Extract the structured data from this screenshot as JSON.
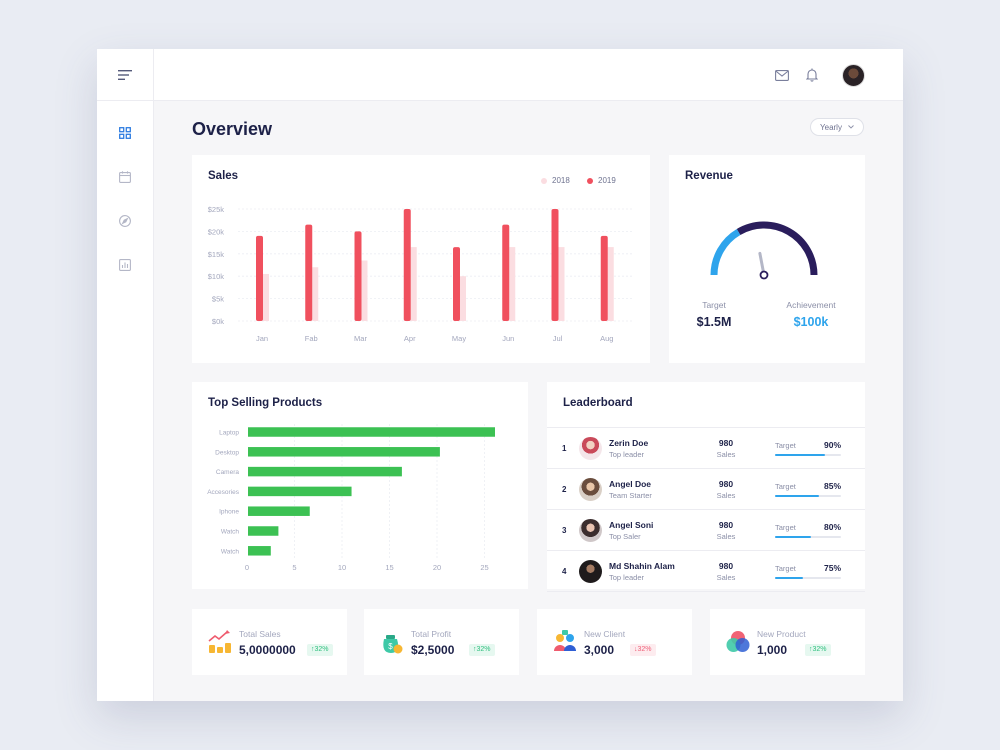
{
  "page": {
    "title": "Overview",
    "period_label": "Yearly"
  },
  "sidebar": {
    "menu_icon": "menu-icon",
    "items": [
      {
        "name": "dashboard",
        "icon": "grid-icon",
        "active": true
      },
      {
        "name": "calendar",
        "icon": "calendar-icon",
        "active": false
      },
      {
        "name": "explore",
        "icon": "compass-icon",
        "active": false
      },
      {
        "name": "reports",
        "icon": "bar-chart-icon",
        "active": false
      }
    ]
  },
  "topbar": {
    "icons": [
      "mail-icon",
      "bell-icon",
      "avatar"
    ]
  },
  "sales": {
    "title": "Sales",
    "legend": [
      {
        "label": "2018",
        "color": "#fbdde1"
      },
      {
        "label": "2019",
        "color": "#f0505e"
      }
    ],
    "chart_data": {
      "type": "bar",
      "categories": [
        "Jan",
        "Fab",
        "Mar",
        "Apr",
        "May",
        "Jun",
        "Jul",
        "Aug"
      ],
      "series": [
        {
          "name": "2018",
          "values": [
            10.5,
            12,
            13.5,
            16.5,
            10,
            16.5,
            16.5,
            16.5
          ]
        },
        {
          "name": "2019",
          "values": [
            19,
            21.5,
            20,
            25,
            16.5,
            21.5,
            25,
            19
          ]
        }
      ],
      "y_ticks": [
        "$0k",
        "$5k",
        "$10k",
        "$15k",
        "$20k",
        "$25k"
      ],
      "ylim": [
        0,
        25
      ],
      "grid": true
    }
  },
  "revenue": {
    "title": "Revenue",
    "gauge": {
      "achieved_fraction": 0.33,
      "needle_fraction": 0.44,
      "achieved_color": "#2ea4ec",
      "remaining_color": "#2a1d5c"
    },
    "target_label": "Target",
    "target_value": "$1.5M",
    "achievement_label": "Achievement",
    "achievement_value": "$100k"
  },
  "products": {
    "title": "Top Selling Products",
    "chart_data": {
      "type": "bar",
      "orientation": "horizontal",
      "categories": [
        "Laptop",
        "Desktop",
        "Camera",
        "Accesories",
        "Iphone",
        "Watch",
        "Watch"
      ],
      "values": [
        26,
        20.2,
        16.2,
        10.9,
        6.5,
        3.2,
        2.4
      ],
      "x_ticks": [
        "0",
        "5",
        "10",
        "15",
        "20",
        "25"
      ],
      "xlim": [
        0,
        25
      ],
      "color": "#3cc153",
      "grid": true
    }
  },
  "leaderboard": {
    "title": "Leaderboard",
    "rows": [
      {
        "rank": "1",
        "name": "Zerin Doe",
        "role": "Top leader",
        "score": "980",
        "score_label": "Sales",
        "target_label": "Target",
        "pct": "90%",
        "progress": 0.75
      },
      {
        "rank": "2",
        "name": "Angel Doe",
        "role": "Team Starter",
        "score": "980",
        "score_label": "Sales",
        "target_label": "Target",
        "pct": "85%",
        "progress": 0.67
      },
      {
        "rank": "3",
        "name": "Angel Soni",
        "role": "Top Saler",
        "score": "980",
        "score_label": "Sales",
        "target_label": "Target",
        "pct": "80%",
        "progress": 0.54
      },
      {
        "rank": "4",
        "name": "Md Shahin Alam",
        "role": "Top leader",
        "score": "980",
        "score_label": "Sales",
        "target_label": "Target",
        "pct": "75%",
        "progress": 0.42
      }
    ]
  },
  "stats": [
    {
      "label": "Total Sales",
      "value": "5,0000000",
      "badge": "↑32%",
      "trend": "up",
      "icon": "trending-coins-icon"
    },
    {
      "label": "Total Profit",
      "value": "$2,5000",
      "badge": "↑32%",
      "trend": "up",
      "icon": "money-bag-icon"
    },
    {
      "label": "New Client",
      "value": "3,000",
      "badge": "↓32%",
      "trend": "down",
      "icon": "clients-icon"
    },
    {
      "label": "New Product",
      "value": "1,000",
      "badge": "↑32%",
      "trend": "up",
      "icon": "product-circles-icon"
    }
  ]
}
